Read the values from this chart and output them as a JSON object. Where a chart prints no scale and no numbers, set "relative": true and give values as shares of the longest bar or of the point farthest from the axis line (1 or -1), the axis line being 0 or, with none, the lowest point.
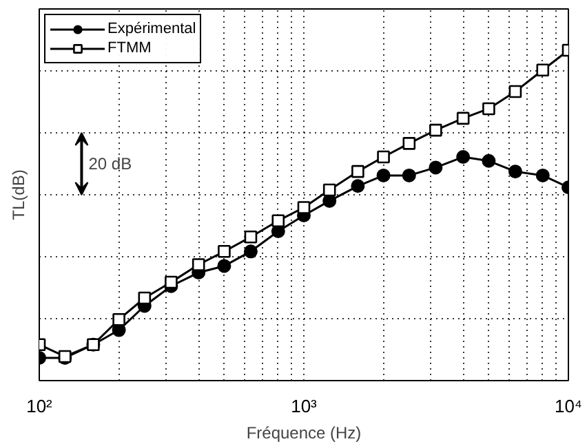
{
  "chart_data": {
    "type": "line",
    "relative": true,
    "xlabel": "Fréquence (Hz)",
    "ylabel": "TL(dB)",
    "log": "x",
    "grid": true,
    "legend": "top left",
    "line_style": "solid",
    "x": [
      100,
      125,
      160,
      200,
      250,
      315,
      400,
      500,
      630,
      800,
      1000,
      1250,
      1600,
      2000,
      2500,
      3150,
      4000,
      5000,
      6300,
      8000,
      10000
    ],
    "xlim": [
      100,
      10000
    ],
    "xticks": [
      {
        "value": 100,
        "label": "10²"
      },
      {
        "value": 1000,
        "label": "10³"
      },
      {
        "value": 10000,
        "label": "10⁴"
      }
    ],
    "annotations": [
      "20 dB"
    ],
    "series": [
      {
        "name": "Expérimental",
        "color": "#000000",
        "marker": "circle",
        "values": [
          0.069,
          0.069,
          0.109,
          0.153,
          0.226,
          0.286,
          0.327,
          0.347,
          0.391,
          0.452,
          0.5,
          0.544,
          0.589,
          0.621,
          0.621,
          0.645,
          0.677,
          0.665,
          0.633,
          0.621,
          0.585
        ]
      },
      {
        "name": "FTMM",
        "color": "#000000",
        "marker": "square",
        "values": [
          0.109,
          0.073,
          0.109,
          0.185,
          0.25,
          0.298,
          0.351,
          0.391,
          0.435,
          0.484,
          0.524,
          0.577,
          0.633,
          0.677,
          0.718,
          0.758,
          0.794,
          0.823,
          0.875,
          0.94,
          1.0
        ]
      }
    ]
  }
}
